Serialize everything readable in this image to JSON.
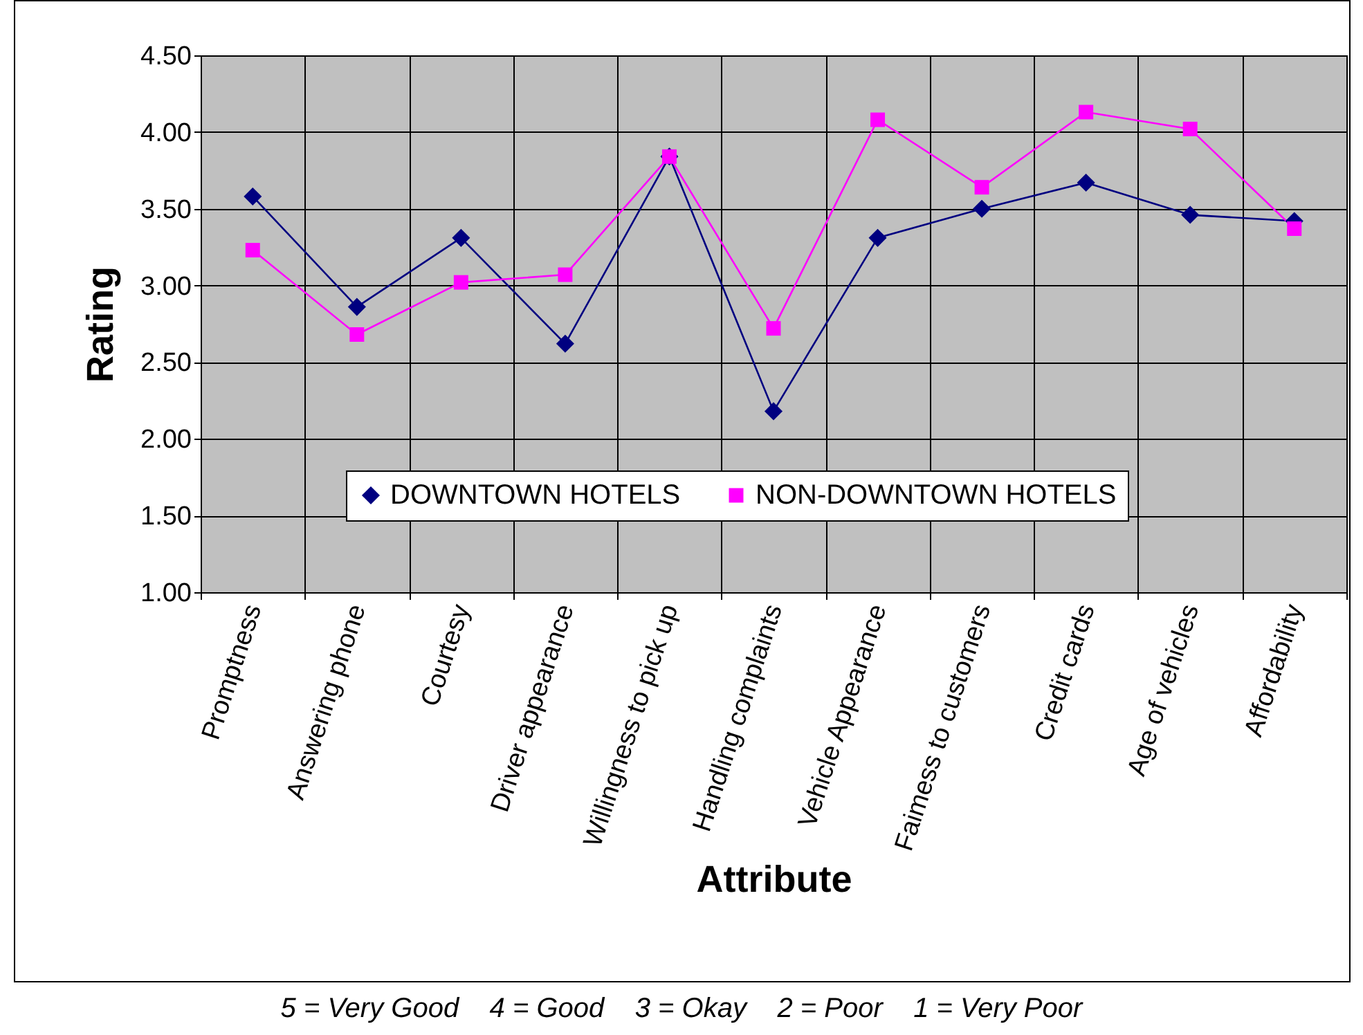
{
  "chart_data": {
    "type": "line",
    "xlabel": "Attribute",
    "ylabel": "Rating",
    "categories": [
      "Promptness",
      "Answering phone",
      "Courtesy",
      "Driver appearance",
      "Willingness to pick up",
      "Handling complaints",
      "Vehicle Appearance",
      "Faimess to customers",
      "Credit cards",
      "Age of vehicles",
      "Affordability"
    ],
    "series": [
      {
        "name": "DOWNTOWN HOTELS",
        "color": "#000080",
        "marker": "diamond",
        "values": [
          3.58,
          2.86,
          3.31,
          2.62,
          3.84,
          2.18,
          3.31,
          3.5,
          3.67,
          3.46,
          3.42
        ]
      },
      {
        "name": "NON-DOWNTOWN HOTELS",
        "color": "#ff00ff",
        "marker": "square",
        "values": [
          3.23,
          2.68,
          3.02,
          3.07,
          3.84,
          2.72,
          4.08,
          3.64,
          4.13,
          4.02,
          3.37
        ]
      }
    ],
    "ylim": [
      1,
      4.5
    ],
    "yticks": [
      {
        "value": 1,
        "label": "1.00"
      },
      {
        "value": 1.5,
        "label": "1.50"
      },
      {
        "value": 2,
        "label": "2.00"
      },
      {
        "value": 2.5,
        "label": "2.50"
      },
      {
        "value": 3,
        "label": "3.00"
      },
      {
        "value": 3.5,
        "label": "3.50"
      },
      {
        "value": 4,
        "label": "4.00"
      },
      {
        "value": 4.5,
        "label": "4.50"
      }
    ],
    "grid": true,
    "legend": "bottom",
    "line_style": "solid",
    "annotations": [
      "5 = Very Good    4 = Good    3 = Okay    2 = Poor    1 = Very Poor"
    ]
  }
}
